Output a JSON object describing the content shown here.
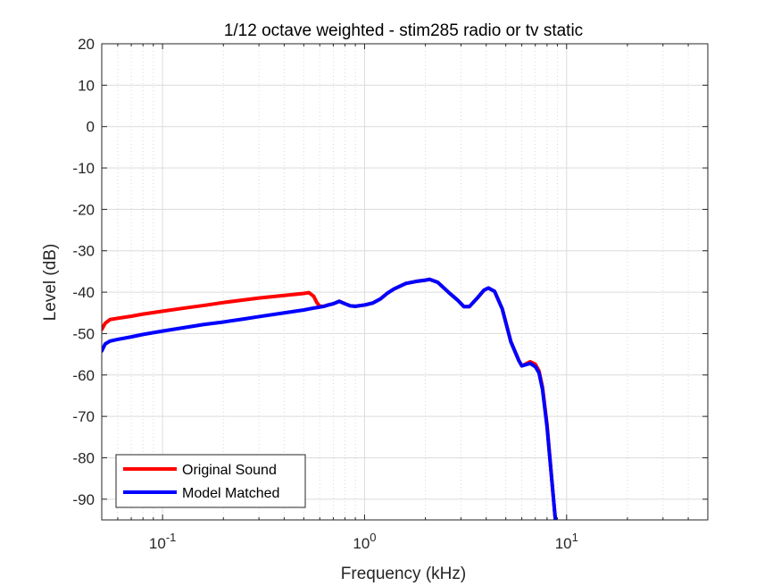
{
  "chart_data": {
    "type": "line",
    "title": "1/12 octave weighted - stim285 radio or tv static",
    "xlabel": "Frequency (kHz)",
    "ylabel": "Level (dB)",
    "xscale": "log",
    "xlim": [
      0.05,
      50
    ],
    "ylim": [
      -95,
      20
    ],
    "x_tick_values": [
      0.1,
      1,
      10
    ],
    "x_tick_labels": [
      {
        "base": "10",
        "exp": "-1"
      },
      {
        "base": "10",
        "exp": "0"
      },
      {
        "base": "10",
        "exp": "1"
      }
    ],
    "y_ticks": [
      20,
      10,
      0,
      -10,
      -20,
      -30,
      -40,
      -50,
      -60,
      -70,
      -80,
      -90
    ],
    "grid": true,
    "legend_position": "bottom-left",
    "series": [
      {
        "name": "Original Sound",
        "color": "#ff0000",
        "points": [
          [
            0.05,
            -49
          ],
          [
            0.052,
            -47.5
          ],
          [
            0.055,
            -46.6
          ],
          [
            0.06,
            -46.3
          ],
          [
            0.07,
            -45.8
          ],
          [
            0.08,
            -45.3
          ],
          [
            0.1,
            -44.6
          ],
          [
            0.13,
            -43.8
          ],
          [
            0.16,
            -43.2
          ],
          [
            0.2,
            -42.5
          ],
          [
            0.25,
            -41.9
          ],
          [
            0.3,
            -41.4
          ],
          [
            0.4,
            -40.8
          ],
          [
            0.5,
            -40.3
          ],
          [
            0.53,
            -40.1
          ],
          [
            0.56,
            -41
          ],
          [
            0.58,
            -42.5
          ],
          [
            0.6,
            -43.4
          ],
          [
            0.63,
            -43.4
          ],
          [
            0.66,
            -43.1
          ],
          [
            0.7,
            -42.8
          ],
          [
            0.75,
            -42.2
          ],
          [
            0.8,
            -42.8
          ],
          [
            0.85,
            -43.3
          ],
          [
            0.9,
            -43.4
          ],
          [
            1.0,
            -43.1
          ],
          [
            1.1,
            -42.6
          ],
          [
            1.2,
            -41.6
          ],
          [
            1.3,
            -40.2
          ],
          [
            1.4,
            -39.2
          ],
          [
            1.6,
            -37.9
          ],
          [
            1.8,
            -37.4
          ],
          [
            2.0,
            -37.1
          ],
          [
            2.1,
            -36.9
          ],
          [
            2.3,
            -37.6
          ],
          [
            2.6,
            -40
          ],
          [
            2.9,
            -42
          ],
          [
            3.1,
            -43.5
          ],
          [
            3.3,
            -43.5
          ],
          [
            3.6,
            -41.5
          ],
          [
            3.9,
            -39.5
          ],
          [
            4.1,
            -39
          ],
          [
            4.4,
            -39.8
          ],
          [
            4.8,
            -44
          ],
          [
            5.3,
            -52
          ],
          [
            5.8,
            -56.5
          ],
          [
            6.0,
            -57.8
          ],
          [
            6.3,
            -57.3
          ],
          [
            6.6,
            -56.8
          ],
          [
            7.0,
            -57.4
          ],
          [
            7.3,
            -59
          ],
          [
            7.6,
            -63
          ],
          [
            8.0,
            -72
          ],
          [
            8.4,
            -84
          ],
          [
            8.8,
            -95
          ]
        ]
      },
      {
        "name": "Model Matched",
        "color": "#0000ff",
        "points": [
          [
            0.05,
            -54.2
          ],
          [
            0.052,
            -52.5
          ],
          [
            0.055,
            -51.8
          ],
          [
            0.06,
            -51.4
          ],
          [
            0.07,
            -50.8
          ],
          [
            0.08,
            -50.2
          ],
          [
            0.1,
            -49.4
          ],
          [
            0.13,
            -48.5
          ],
          [
            0.16,
            -47.8
          ],
          [
            0.2,
            -47.2
          ],
          [
            0.25,
            -46.5
          ],
          [
            0.3,
            -45.9
          ],
          [
            0.4,
            -45
          ],
          [
            0.5,
            -44.3
          ],
          [
            0.55,
            -43.9
          ],
          [
            0.6,
            -43.6
          ],
          [
            0.63,
            -43.4
          ],
          [
            0.66,
            -43.1
          ],
          [
            0.7,
            -42.8
          ],
          [
            0.75,
            -42.2
          ],
          [
            0.8,
            -42.8
          ],
          [
            0.85,
            -43.3
          ],
          [
            0.9,
            -43.4
          ],
          [
            1.0,
            -43.1
          ],
          [
            1.1,
            -42.6
          ],
          [
            1.2,
            -41.6
          ],
          [
            1.3,
            -40.2
          ],
          [
            1.4,
            -39.2
          ],
          [
            1.6,
            -37.9
          ],
          [
            1.8,
            -37.4
          ],
          [
            2.0,
            -37.1
          ],
          [
            2.1,
            -36.9
          ],
          [
            2.3,
            -37.6
          ],
          [
            2.6,
            -40
          ],
          [
            2.9,
            -42
          ],
          [
            3.1,
            -43.5
          ],
          [
            3.3,
            -43.5
          ],
          [
            3.6,
            -41.5
          ],
          [
            3.9,
            -39.5
          ],
          [
            4.1,
            -39
          ],
          [
            4.4,
            -39.8
          ],
          [
            4.8,
            -44
          ],
          [
            5.3,
            -52
          ],
          [
            5.8,
            -56.5
          ],
          [
            6.0,
            -57.8
          ],
          [
            6.3,
            -57.5
          ],
          [
            6.6,
            -57.2
          ],
          [
            7.0,
            -58
          ],
          [
            7.3,
            -59.5
          ],
          [
            7.6,
            -63.5
          ],
          [
            8.0,
            -72.5
          ],
          [
            8.4,
            -84
          ],
          [
            8.8,
            -95
          ]
        ]
      }
    ]
  }
}
